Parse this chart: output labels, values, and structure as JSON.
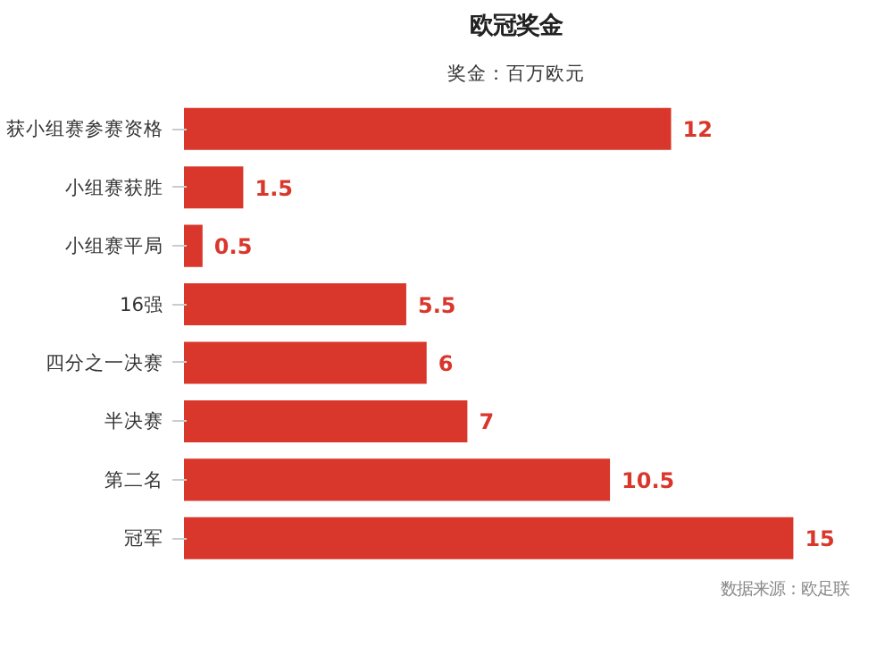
{
  "chart_data": {
    "type": "bar",
    "orientation": "horizontal",
    "title": "欧冠奖金",
    "subtitle": "奖金：百万欧元",
    "categories": [
      "获小组赛参赛资格",
      "小组赛获胜",
      "小组赛平局",
      "16强",
      "四分之一决赛",
      "半决赛",
      "第二名",
      "冠军"
    ],
    "values": [
      12,
      1.5,
      0.5,
      5.5,
      6,
      7,
      10.5,
      15
    ],
    "color": "#d9372b",
    "data_labels": true,
    "annotations": [
      "数据来源：欧足联"
    ]
  }
}
